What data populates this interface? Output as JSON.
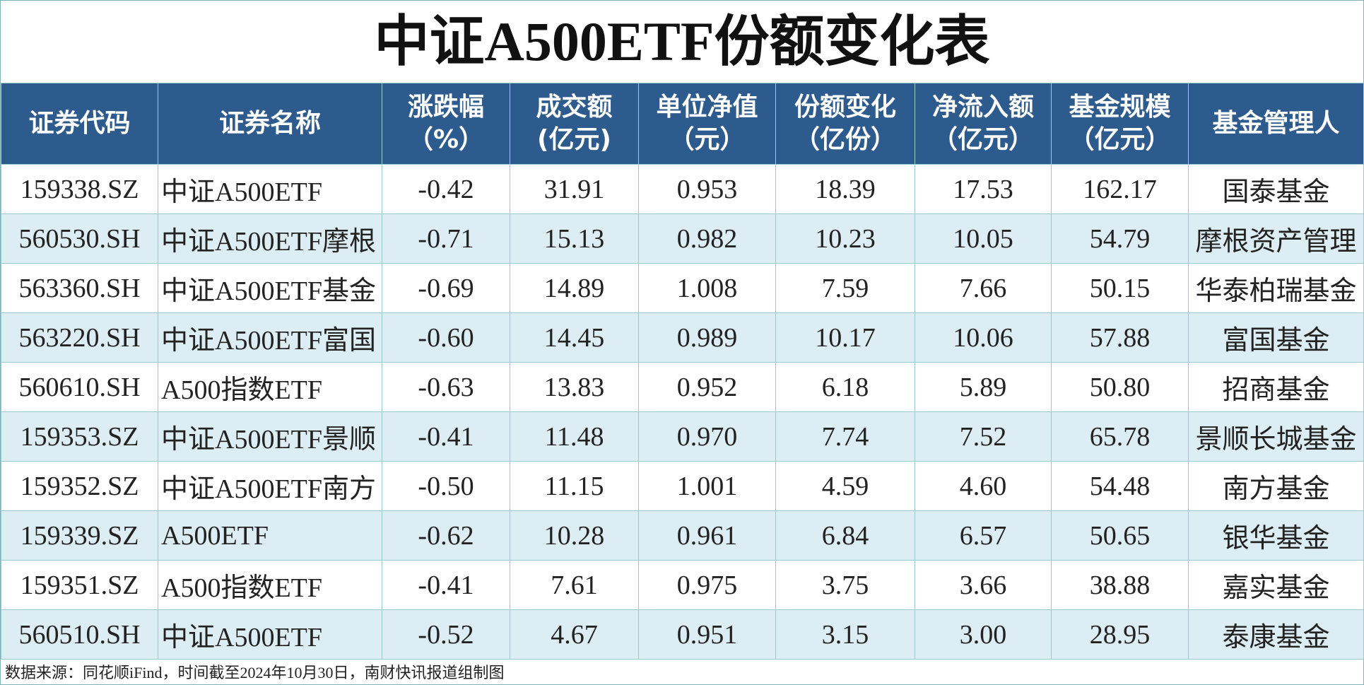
{
  "title": "中证A500ETF份额变化表",
  "table": {
    "header": [
      [
        "证券代码"
      ],
      [
        "证券名称"
      ],
      [
        "涨跌幅",
        "（%）"
      ],
      [
        "成交额",
        "(亿元)"
      ],
      [
        "单位净值",
        "（元）"
      ],
      [
        "份额变化",
        "（亿份）"
      ],
      [
        "净流入额",
        "（亿元）"
      ],
      [
        "基金规模",
        "（亿元）"
      ],
      [
        "基金管理人"
      ]
    ],
    "rows": [
      [
        "159338.SZ",
        "中证A500ETF",
        "-0.42",
        "31.91",
        "0.953",
        "18.39",
        "17.53",
        "162.17",
        "国泰基金"
      ],
      [
        "560530.SH",
        "中证A500ETF摩根",
        "-0.71",
        "15.13",
        "0.982",
        "10.23",
        "10.05",
        "54.79",
        "摩根资产管理"
      ],
      [
        "563360.SH",
        "中证A500ETF基金",
        "-0.69",
        "14.89",
        "1.008",
        "7.59",
        "7.66",
        "50.15",
        "华泰柏瑞基金"
      ],
      [
        "563220.SH",
        "中证A500ETF富国",
        "-0.60",
        "14.45",
        "0.989",
        "10.17",
        "10.06",
        "57.88",
        "富国基金"
      ],
      [
        "560610.SH",
        "A500指数ETF",
        "-0.63",
        "13.83",
        "0.952",
        "6.18",
        "5.89",
        "50.80",
        "招商基金"
      ],
      [
        "159353.SZ",
        "中证A500ETF景顺",
        "-0.41",
        "11.48",
        "0.970",
        "7.74",
        "7.52",
        "65.78",
        "景顺长城基金"
      ],
      [
        "159352.SZ",
        "中证A500ETF南方",
        "-0.50",
        "11.15",
        "1.001",
        "4.59",
        "4.60",
        "54.48",
        "南方基金"
      ],
      [
        "159339.SZ",
        "A500ETF",
        "-0.62",
        "10.28",
        "0.961",
        "6.84",
        "6.57",
        "50.65",
        "银华基金"
      ],
      [
        "159351.SZ",
        "A500指数ETF",
        "-0.41",
        "7.61",
        "0.975",
        "3.75",
        "3.66",
        "38.88",
        "嘉实基金"
      ],
      [
        "560510.SH",
        "中证A500ETF",
        "-0.52",
        "4.67",
        "0.951",
        "3.15",
        "3.00",
        "28.95",
        "泰康基金"
      ]
    ]
  },
  "footer": "数据来源：同花顺iFind，时间截至2024年10月30日，南财快讯报道组制图"
}
